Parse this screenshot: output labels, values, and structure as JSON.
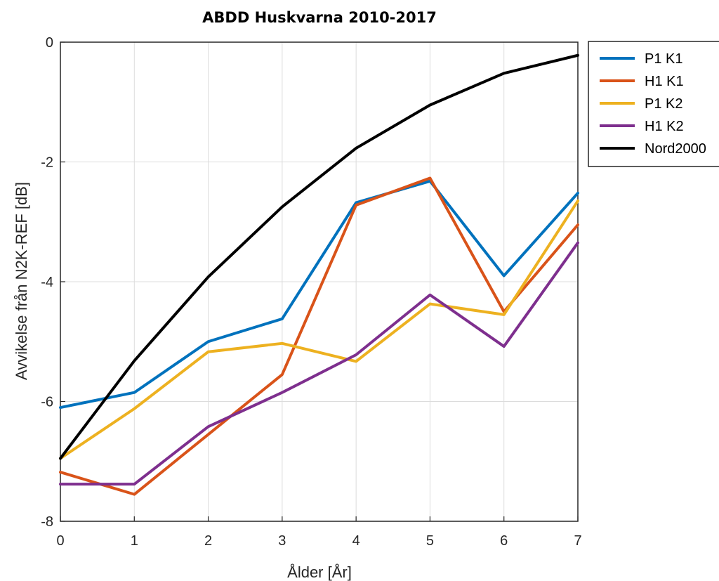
{
  "chart_data": {
    "type": "line",
    "title": "ABDD Huskvarna 2010-2017",
    "xlabel": "Ålder [År]",
    "ylabel": "Avvikelse från N2K-REF [dB]",
    "x": [
      0,
      1,
      2,
      3,
      4,
      5,
      6,
      7
    ],
    "xlim": [
      0,
      7
    ],
    "ylim": [
      -8,
      0
    ],
    "xticks": [
      "0",
      "1",
      "2",
      "3",
      "4",
      "5",
      "6",
      "7"
    ],
    "yticks": [
      "0",
      "-2",
      "-4",
      "-6",
      "-8"
    ],
    "grid": true,
    "legend_position": "outside-top-right",
    "series": [
      {
        "name": "P1 K1",
        "color": "#0072BD",
        "values": [
          -6.1,
          -5.85,
          -5.0,
          -4.62,
          -2.68,
          -2.32,
          -3.9,
          -2.52
        ]
      },
      {
        "name": "H1 K1",
        "color": "#D95319",
        "values": [
          -7.18,
          -7.55,
          -6.55,
          -5.55,
          -2.72,
          -2.27,
          -4.5,
          -3.05
        ]
      },
      {
        "name": "P1 K2",
        "color": "#EDB120",
        "values": [
          -6.95,
          -6.12,
          -5.17,
          -5.03,
          -5.33,
          -4.37,
          -4.55,
          -2.65
        ]
      },
      {
        "name": "H1 K2",
        "color": "#7E2F8E",
        "values": [
          -7.38,
          -7.38,
          -6.42,
          -5.85,
          -5.22,
          -4.22,
          -5.08,
          -3.35
        ]
      },
      {
        "name": "Nord2000",
        "color": "#000000",
        "values": [
          -6.95,
          -5.32,
          -3.92,
          -2.75,
          -1.77,
          -1.05,
          -0.52,
          -0.22
        ]
      }
    ]
  }
}
